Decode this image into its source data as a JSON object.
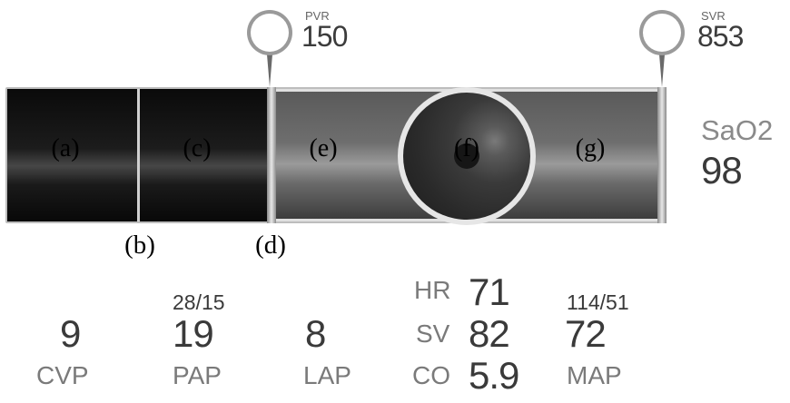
{
  "gauges": [
    {
      "label": "PVR",
      "value": "150"
    },
    {
      "label": "SVR",
      "value": "853"
    }
  ],
  "segments": [
    "(a)",
    "(c)",
    "(e)",
    "(f)",
    "(g)"
  ],
  "below_labels": [
    "(b)",
    "(d)"
  ],
  "sao2": {
    "label": "SaO2",
    "value": "98"
  },
  "readouts": {
    "cvp": {
      "value": "9",
      "label": "CVP"
    },
    "pap": {
      "pressure": "28/15",
      "value": "19",
      "label": "PAP"
    },
    "lap": {
      "value": "8",
      "label": "LAP"
    },
    "hr": {
      "label": "HR",
      "value": "71"
    },
    "sv": {
      "label": "SV",
      "value": "82"
    },
    "co": {
      "label": "CO",
      "value": "5.9"
    },
    "map": {
      "pressure": "114/51",
      "value": "72",
      "label": "MAP"
    }
  }
}
